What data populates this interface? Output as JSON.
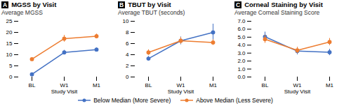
{
  "chart_data": [
    {
      "type": "line",
      "title": "MGSS by Visit",
      "panel_label": "A",
      "x_label": "Study Visit",
      "y_label": "Average MGSS",
      "categories": [
        "BL",
        "W1",
        "M1"
      ],
      "series": [
        {
          "name": "Below Median (More Severe)",
          "color": "#4472C4",
          "marker": "circle",
          "line_style": "solid",
          "values": [
            1.2,
            11.0,
            12.3
          ],
          "errors": [
            0.3,
            1.0,
            0.8
          ]
        },
        {
          "name": "Above Median (Less Severe)",
          "color": "#ED7D31",
          "marker": "circle",
          "line_style": "solid",
          "values": [
            8.0,
            17.2,
            18.3
          ],
          "errors": [
            0.4,
            1.5,
            1.0
          ]
        }
      ],
      "ylim": [
        0,
        25
      ],
      "yticks": [
        0,
        5,
        10,
        15,
        20,
        25
      ],
      "grid": false,
      "legend": "bottom"
    },
    {
      "type": "line",
      "title": "TBUT by Visit",
      "panel_label": "B",
      "x_label": "Study Visit",
      "y_label": "Average TBUT (seconds)",
      "categories": [
        "BL",
        "W1",
        "M1"
      ],
      "series": [
        {
          "name": "Below Median (More Severe)",
          "color": "#4472C4",
          "marker": "circle",
          "line_style": "solid",
          "values": [
            3.3,
            6.5,
            8.0
          ],
          "errors": [
            0.4,
            0.7,
            1.5
          ]
        },
        {
          "name": "Above Median (Less Severe)",
          "color": "#ED7D31",
          "marker": "circle",
          "line_style": "solid",
          "values": [
            4.4,
            6.5,
            6.2
          ],
          "errors": [
            0.5,
            0.6,
            0.5
          ]
        }
      ],
      "ylim": [
        0,
        10
      ],
      "yticks": [
        0,
        2,
        4,
        6,
        8,
        10
      ],
      "grid": false,
      "legend": "bottom"
    },
    {
      "type": "line",
      "title": "Corneal Staining by Visit",
      "panel_label": "C",
      "x_label": "Study Visit",
      "y_label": "Average Corneal Staining Score",
      "categories": [
        "BL",
        "W1",
        "M1"
      ],
      "series": [
        {
          "name": "Below Median (More Severe)",
          "color": "#4472C4",
          "marker": "circle",
          "line_style": "solid",
          "values": [
            5.05,
            3.25,
            3.1
          ],
          "errors": [
            0.6,
            0.45,
            0.4
          ]
        },
        {
          "name": "Above Median (Less Severe)",
          "color": "#ED7D31",
          "marker": "circle",
          "line_style": "solid",
          "values": [
            4.75,
            3.35,
            4.4
          ],
          "errors": [
            0.5,
            0.4,
            0.45
          ]
        }
      ],
      "ylim": [
        0,
        7
      ],
      "yticks": [
        0,
        1,
        2,
        3,
        4,
        5,
        6,
        7
      ],
      "grid": false,
      "legend": "bottom"
    }
  ]
}
